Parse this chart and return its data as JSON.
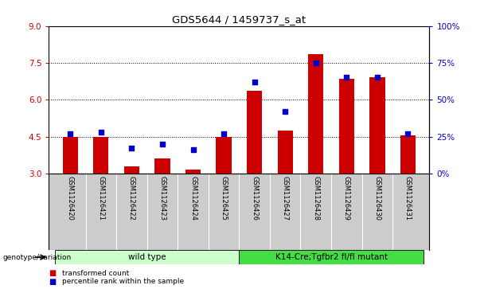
{
  "title": "GDS5644 / 1459737_s_at",
  "samples": [
    "GSM1126420",
    "GSM1126421",
    "GSM1126422",
    "GSM1126423",
    "GSM1126424",
    "GSM1126425",
    "GSM1126426",
    "GSM1126427",
    "GSM1126428",
    "GSM1126429",
    "GSM1126430",
    "GSM1126431"
  ],
  "transformed_count": [
    4.5,
    4.5,
    3.3,
    3.6,
    3.15,
    4.5,
    6.35,
    4.75,
    7.85,
    6.85,
    6.9,
    4.55
  ],
  "percentile_rank": [
    27,
    28,
    17,
    20,
    16,
    27,
    62,
    42,
    75,
    65,
    65,
    27
  ],
  "bar_bottom": 3.0,
  "ylim_left": [
    3,
    9
  ],
  "ylim_right": [
    0,
    100
  ],
  "yticks_left": [
    3,
    4.5,
    6,
    7.5,
    9
  ],
  "yticks_right": [
    0,
    25,
    50,
    75,
    100
  ],
  "grid_values": [
    4.5,
    6.0,
    7.5
  ],
  "bar_color": "#cc0000",
  "dot_color": "#0000cc",
  "genotype_groups": [
    {
      "label": "wild type",
      "start": 0,
      "end": 5,
      "color": "#ccffcc"
    },
    {
      "label": "K14-Cre;Tgfbr2 fl/fl mutant",
      "start": 6,
      "end": 11,
      "color": "#44dd44"
    }
  ],
  "genotype_label": "genotype/variation",
  "legend_items": [
    {
      "color": "#cc0000",
      "label": "transformed count"
    },
    {
      "color": "#0000cc",
      "label": "percentile rank within the sample"
    }
  ],
  "left_tick_color": "#cc0000",
  "right_tick_color": "#0000cc",
  "sample_bg_color": "#cccccc",
  "plot_bg_color": "#ffffff"
}
